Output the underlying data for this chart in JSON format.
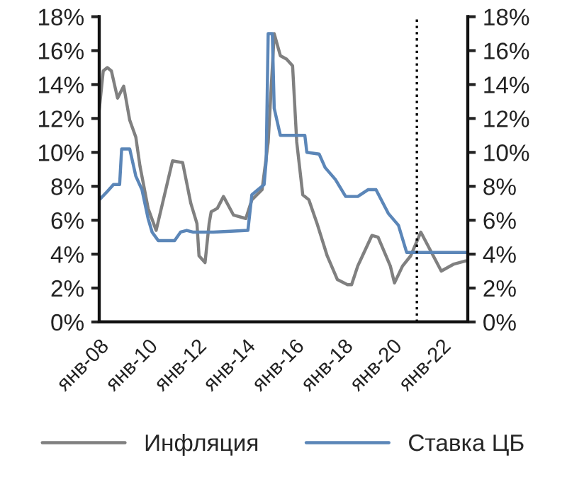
{
  "chart_data": {
    "type": "line",
    "legend": "bottom",
    "grid": false,
    "line_style": "solid",
    "marker": "none",
    "xlim": [
      "2008-01",
      "2023-02"
    ],
    "xticks": [
      {
        "value": "2008-01",
        "label": "янв-08"
      },
      {
        "value": "2010-01",
        "label": "янв-10"
      },
      {
        "value": "2012-01",
        "label": "янв-12"
      },
      {
        "value": "2014-01",
        "label": "янв-14"
      },
      {
        "value": "2016-01",
        "label": "янв-16"
      },
      {
        "value": "2018-01",
        "label": "янв-18"
      },
      {
        "value": "2020-01",
        "label": "янв-20"
      },
      {
        "value": "2022-01",
        "label": "янв-22"
      }
    ],
    "ylim": [
      0,
      18
    ],
    "yticks": [
      {
        "value": 0,
        "label": "0%"
      },
      {
        "value": 2,
        "label": "2%"
      },
      {
        "value": 4,
        "label": "4%"
      },
      {
        "value": 6,
        "label": "6%"
      },
      {
        "value": 8,
        "label": "8%"
      },
      {
        "value": 10,
        "label": "10%"
      },
      {
        "value": 12,
        "label": "12%"
      },
      {
        "value": 14,
        "label": "14%"
      },
      {
        "value": 16,
        "label": "16%"
      },
      {
        "value": 18,
        "label": "18%"
      }
    ],
    "y2lim": [
      0,
      18
    ],
    "y2ticks": [
      {
        "value": 0,
        "label": "0%"
      },
      {
        "value": 2,
        "label": "2%"
      },
      {
        "value": 4,
        "label": "4%"
      },
      {
        "value": 6,
        "label": "6%"
      },
      {
        "value": 8,
        "label": "8%"
      },
      {
        "value": 10,
        "label": "10%"
      },
      {
        "value": 12,
        "label": "12%"
      },
      {
        "value": 14,
        "label": "14%"
      },
      {
        "value": 16,
        "label": "16%"
      },
      {
        "value": 18,
        "label": "18%"
      }
    ],
    "ref_lines": [
      {
        "axis": "x",
        "value": "2021-01",
        "color": "#000000",
        "line_style": "dotted"
      }
    ],
    "series": [
      {
        "name": "Инфляция",
        "color": "#808080",
        "x": [
          "2008-01",
          "2008-03",
          "2008-05",
          "2008-07",
          "2008-10",
          "2009-01",
          "2009-04",
          "2009-07",
          "2009-09",
          "2010-01",
          "2010-05",
          "2011-01",
          "2011-06",
          "2011-10",
          "2012-01",
          "2012-02",
          "2012-05",
          "2012-07",
          "2012-08",
          "2012-11",
          "2013-02",
          "2013-07",
          "2014-01",
          "2014-04",
          "2014-09",
          "2014-12",
          "2015-03",
          "2015-06",
          "2015-09",
          "2015-12",
          "2016-02",
          "2016-05",
          "2016-08",
          "2016-12",
          "2017-05",
          "2017-10",
          "2018-03",
          "2018-05",
          "2018-08",
          "2019-03",
          "2019-06",
          "2019-12",
          "2020-02",
          "2020-06",
          "2020-10",
          "2021-03",
          "2022-01",
          "2022-04",
          "2022-07",
          "2023-01"
        ],
        "values": [
          12.5,
          14.8,
          15.0,
          14.8,
          13.2,
          13.9,
          11.9,
          10.9,
          9.2,
          6.7,
          5.4,
          9.5,
          9.4,
          7.0,
          5.8,
          3.9,
          3.5,
          5.8,
          6.5,
          6.7,
          7.4,
          6.3,
          6.1,
          7.2,
          7.8,
          10.6,
          17.0,
          15.7,
          15.5,
          15.1,
          10.6,
          7.5,
          7.2,
          5.8,
          3.9,
          2.5,
          2.2,
          2.2,
          3.3,
          5.1,
          5.0,
          3.3,
          2.3,
          3.3,
          3.9,
          5.3,
          3.0,
          3.2,
          3.4,
          3.6
        ]
      },
      {
        "name": "Ставка ЦБ",
        "color": "#5b86b8",
        "x": [
          "2008-01",
          "2008-05",
          "2008-08",
          "2008-11",
          "2008-12",
          "2009-04",
          "2009-07",
          "2009-10",
          "2010-01",
          "2010-03",
          "2010-06",
          "2011-02",
          "2011-05",
          "2011-08",
          "2011-11",
          "2012-09",
          "2014-02",
          "2014-04",
          "2014-07",
          "2014-10",
          "2014-11",
          "2014-12",
          "2015-02",
          "2015-03",
          "2015-06",
          "2016-06",
          "2016-07",
          "2017-01",
          "2017-04",
          "2017-09",
          "2018-02",
          "2018-08",
          "2019-01",
          "2019-05",
          "2019-11",
          "2020-04",
          "2020-08",
          "2023-02"
        ],
        "values": [
          7.2,
          7.7,
          8.1,
          8.1,
          10.2,
          10.2,
          8.6,
          7.8,
          6.1,
          5.3,
          4.8,
          4.8,
          5.3,
          5.4,
          5.3,
          5.3,
          5.4,
          7.5,
          7.8,
          8.1,
          9.5,
          17.0,
          17.0,
          12.6,
          11.0,
          11.0,
          10.0,
          9.9,
          9.1,
          8.4,
          7.4,
          7.4,
          7.8,
          7.8,
          6.4,
          5.7,
          4.1,
          4.1
        ]
      }
    ]
  }
}
